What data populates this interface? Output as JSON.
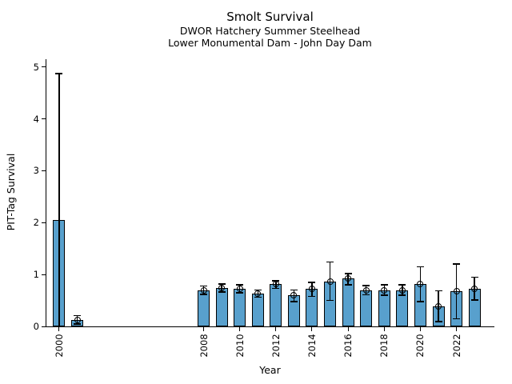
{
  "chart_data": {
    "type": "bar",
    "title": "Smolt Survival",
    "subtitles": [
      "DWOR Hatchery Summer Steelhead",
      "Lower Monumental Dam - John Day Dam"
    ],
    "xlabel": "Year",
    "ylabel": "PIT-Tag Survival",
    "ylim": [
      0,
      5.15
    ],
    "xlim": [
      1999.25,
      2024.1
    ],
    "yticks": [
      0,
      1,
      2,
      3,
      4,
      5
    ],
    "xticks": [
      2000,
      2008,
      2010,
      2012,
      2014,
      2016,
      2018,
      2020,
      2022
    ],
    "grid": false,
    "legend_position": "none",
    "bar_color": "#58A0CD",
    "bar_edge_color": "#000000",
    "error_bar_color": "#000000",
    "marker_style": "open-circle",
    "series": [
      {
        "name": "PIT-Tag Survival",
        "points": [
          {
            "year": 2000,
            "value": 2.05,
            "ci_low": 0.0,
            "ci_high": 4.87,
            "marker": false,
            "ci_low_clipped": true
          },
          {
            "year": 2001,
            "value": 0.13,
            "ci_low": 0.05,
            "ci_high": 0.21,
            "marker": true
          },
          {
            "year": 2008,
            "value": 0.7,
            "ci_low": 0.62,
            "ci_high": 0.78,
            "marker": true
          },
          {
            "year": 2009,
            "value": 0.74,
            "ci_low": 0.66,
            "ci_high": 0.82,
            "marker": true
          },
          {
            "year": 2010,
            "value": 0.73,
            "ci_low": 0.65,
            "ci_high": 0.8,
            "marker": true
          },
          {
            "year": 2011,
            "value": 0.63,
            "ci_low": 0.56,
            "ci_high": 0.7,
            "marker": true
          },
          {
            "year": 2012,
            "value": 0.81,
            "ci_low": 0.73,
            "ci_high": 0.88,
            "marker": true
          },
          {
            "year": 2013,
            "value": 0.6,
            "ci_low": 0.48,
            "ci_high": 0.7,
            "marker": true
          },
          {
            "year": 2014,
            "value": 0.72,
            "ci_low": 0.58,
            "ci_high": 0.85,
            "marker": true
          },
          {
            "year": 2015,
            "value": 0.86,
            "ci_low": 0.5,
            "ci_high": 1.24,
            "marker": true
          },
          {
            "year": 2016,
            "value": 0.92,
            "ci_low": 0.8,
            "ci_high": 1.02,
            "marker": true
          },
          {
            "year": 2017,
            "value": 0.7,
            "ci_low": 0.61,
            "ci_high": 0.79,
            "marker": true
          },
          {
            "year": 2018,
            "value": 0.7,
            "ci_low": 0.6,
            "ci_high": 0.8,
            "marker": true
          },
          {
            "year": 2019,
            "value": 0.7,
            "ci_low": 0.6,
            "ci_high": 0.8,
            "marker": true
          },
          {
            "year": 2020,
            "value": 0.82,
            "ci_low": 0.48,
            "ci_high": 1.15,
            "marker": true
          },
          {
            "year": 2021,
            "value": 0.39,
            "ci_low": 0.09,
            "ci_high": 0.69,
            "marker": true
          },
          {
            "year": 2022,
            "value": 0.68,
            "ci_low": 0.15,
            "ci_high": 1.2,
            "marker": true
          },
          {
            "year": 2023,
            "value": 0.73,
            "ci_low": 0.51,
            "ci_high": 0.95,
            "marker": true
          }
        ]
      }
    ]
  }
}
